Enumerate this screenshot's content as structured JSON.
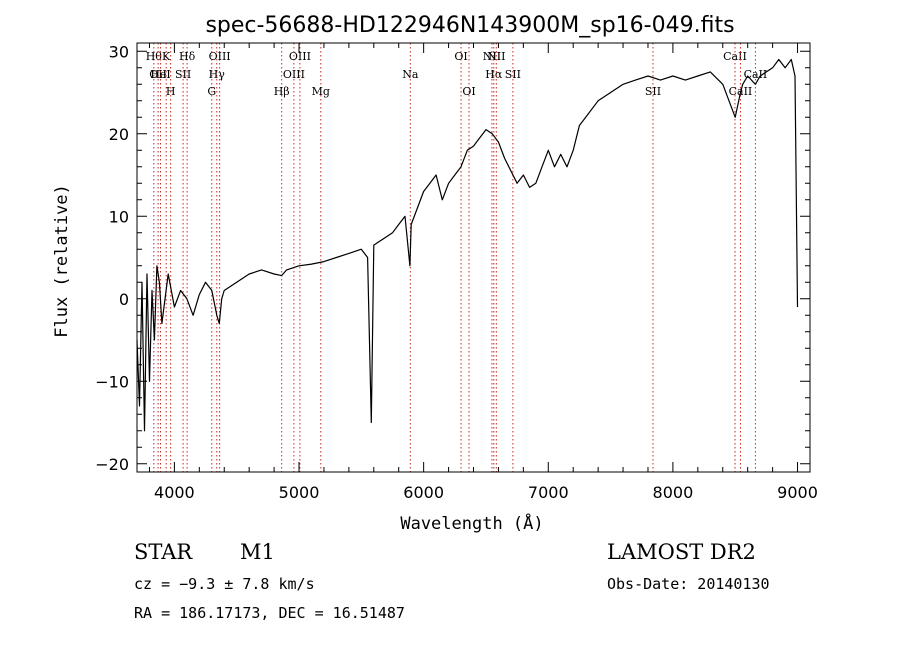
{
  "chart_data": {
    "type": "line",
    "title": "spec-56688-HD122946N143900M_sp16-049.fits",
    "xlabel": "Wavelength (Å)",
    "ylabel": "Flux (relative)",
    "xlim": [
      3700,
      9100
    ],
    "ylim": [
      -21,
      31
    ],
    "xticks": [
      4000,
      5000,
      6000,
      7000,
      8000,
      9000
    ],
    "yticks": [
      -20,
      -10,
      0,
      10,
      20,
      30
    ],
    "grid": false,
    "series": [
      {
        "color": "#000000",
        "x": [
          3700,
          3720,
          3740,
          3760,
          3780,
          3800,
          3820,
          3840,
          3860,
          3880,
          3900,
          3950,
          4000,
          4050,
          4100,
          4150,
          4200,
          4250,
          4300,
          4340,
          4360,
          4380,
          4400,
          4500,
          4600,
          4700,
          4800,
          4860,
          4900,
          5000,
          5100,
          5200,
          5300,
          5400,
          5500,
          5550,
          5580,
          5600,
          5650,
          5700,
          5750,
          5800,
          5850,
          5890,
          5900,
          5950,
          6000,
          6050,
          6100,
          6150,
          6200,
          6250,
          6300,
          6350,
          6400,
          6450,
          6500,
          6550,
          6600,
          6650,
          6700,
          6750,
          6800,
          6850,
          6900,
          6950,
          7000,
          7050,
          7100,
          7150,
          7200,
          7250,
          7300,
          7400,
          7500,
          7600,
          7700,
          7800,
          7900,
          8000,
          8100,
          8200,
          8300,
          8400,
          8450,
          8500,
          8542,
          8560,
          8600,
          8662,
          8700,
          8800,
          8850,
          8900,
          8950,
          8980,
          9000
        ],
        "y": [
          -5,
          -13,
          2,
          -16,
          3,
          -10,
          1,
          -5,
          4,
          2,
          -3,
          3,
          -1,
          1,
          0,
          -2,
          0.5,
          2,
          1,
          -2,
          -3,
          0,
          1,
          2,
          3,
          3.5,
          3,
          2.8,
          3.5,
          4,
          4.2,
          4.5,
          5,
          5.5,
          6,
          5,
          -15,
          6.5,
          7,
          7.5,
          8,
          9,
          10,
          4,
          9,
          11,
          13,
          14,
          15,
          12,
          14,
          15,
          16,
          18,
          18.5,
          19.5,
          20.5,
          20,
          19,
          17,
          15.5,
          14,
          15,
          13.5,
          14,
          16,
          18,
          16,
          17.5,
          16,
          18,
          21,
          22,
          24,
          25,
          26,
          26.5,
          27,
          26.5,
          27,
          26.5,
          27,
          27.5,
          26,
          24,
          22,
          25,
          26,
          27,
          26,
          27,
          28,
          29,
          28,
          29,
          27,
          -1
        ]
      }
    ],
    "lines": [
      {
        "wavelength": 3835,
        "label": "Hθ",
        "row": 1
      },
      {
        "wavelength": 3869,
        "label": "OII",
        "row": 2
      },
      {
        "wavelength": 3889,
        "label": "HeI",
        "row": 2
      },
      {
        "wavelength": 3934,
        "label": "K",
        "row": 1
      },
      {
        "wavelength": 3970,
        "label": "H",
        "row": 3
      },
      {
        "wavelength": 4070,
        "label": "SII",
        "row": 2
      },
      {
        "wavelength": 4102,
        "label": "Hδ",
        "row": 1
      },
      {
        "wavelength": 4300,
        "label": "G",
        "row": 3
      },
      {
        "wavelength": 4340,
        "label": "Hγ",
        "row": 2
      },
      {
        "wavelength": 4363,
        "label": "OIII",
        "row": 1
      },
      {
        "wavelength": 4861,
        "label": "Hβ",
        "row": 3
      },
      {
        "wavelength": 4959,
        "label": "OIII",
        "row": 2
      },
      {
        "wavelength": 5007,
        "label": "OIII",
        "row": 1
      },
      {
        "wavelength": 5175,
        "label": "Mg",
        "row": 3
      },
      {
        "wavelength": 5893,
        "label": "Na",
        "row": 2
      },
      {
        "wavelength": 6300,
        "label": "OI",
        "row": 1
      },
      {
        "wavelength": 6364,
        "label": "OI",
        "row": 3
      },
      {
        "wavelength": 6548,
        "label": "NII",
        "row": 1
      },
      {
        "wavelength": 6563,
        "label": "Hα",
        "row": 2
      },
      {
        "wavelength": 6583,
        "label": "NII",
        "row": 1
      },
      {
        "wavelength": 6716,
        "label": "SII",
        "row": 2
      },
      {
        "wavelength": 7840,
        "label": "SII",
        "row": 3
      },
      {
        "wavelength": 8498,
        "label": "CaII",
        "row": 1
      },
      {
        "wavelength": 8542,
        "label": "CaII",
        "row": 3
      },
      {
        "wavelength": 8662,
        "label": "CaII",
        "row": 2
      }
    ]
  },
  "info": {
    "object_class": "STAR",
    "subclass": "M1",
    "redshift_text": "cz = −9.3 ± 7.8 km/s",
    "coords_text": "RA = 186.17173, DEC =  16.51487",
    "survey": "LAMOST DR2",
    "obs_date": "Obs-Date: 20140130"
  }
}
